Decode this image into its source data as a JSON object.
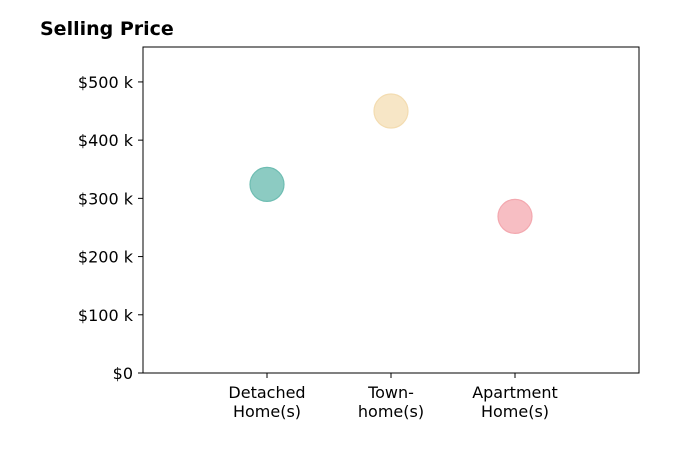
{
  "chart_data": {
    "type": "scatter",
    "title": "Selling Price",
    "xlabel": "",
    "ylabel": "",
    "categories": [
      [
        "Detached",
        "Home(s)"
      ],
      [
        "Town-",
        "home(s)"
      ],
      [
        "Apartment",
        "Home(s)"
      ]
    ],
    "values": [
      324000,
      450000,
      269000
    ],
    "colors": [
      "#8ccbc2",
      "#f7e6c6",
      "#f7bec3"
    ],
    "edge_colors": [
      "#6ebdb2",
      "#f3dcb1",
      "#f3a8af"
    ],
    "x_range": [
      -1,
      3
    ],
    "ylim": [
      0,
      560000
    ],
    "y_ticks": [
      0,
      100000,
      200000,
      300000,
      400000,
      500000
    ],
    "y_tick_labels": [
      "$0",
      "$100 k",
      "$200 k",
      "$300 k",
      "$400 k",
      "$500 k"
    ],
    "grid": false,
    "legend": "none"
  }
}
